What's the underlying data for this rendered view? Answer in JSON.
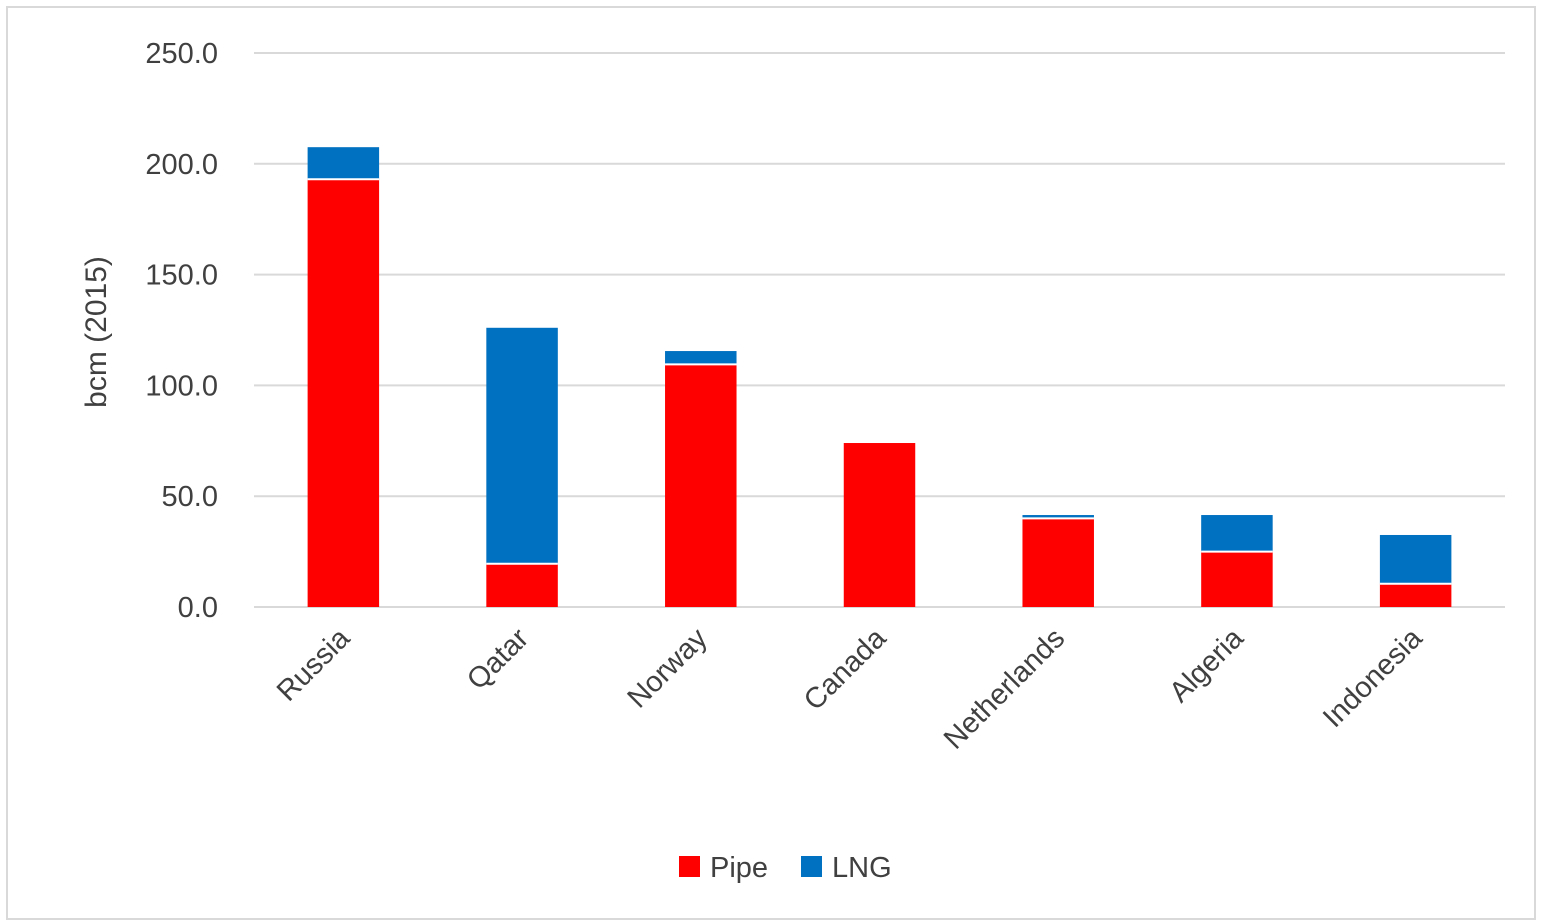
{
  "chart_data": {
    "type": "bar",
    "stacked": true,
    "categories": [
      "Russia",
      "Qatar",
      "Norway",
      "Canada",
      "Netherlands",
      "Algeria",
      "Indonesia"
    ],
    "series": [
      {
        "name": "Pipe",
        "color": "#ff0000",
        "values": [
          193.0,
          19.5,
          109.5,
          74.0,
          40.0,
          25.0,
          10.5
        ]
      },
      {
        "name": "LNG",
        "color": "#0070c0",
        "values": [
          14.5,
          106.5,
          6.0,
          0.0,
          1.5,
          16.5,
          22.0
        ]
      }
    ],
    "ylabel": "bcm (2015)",
    "xlabel": "",
    "ylim": [
      0,
      250
    ],
    "yticks": [
      "0.0",
      "50.0",
      "100.0",
      "150.0",
      "200.0",
      "250.0"
    ],
    "grid": true,
    "legend_position": "bottom"
  }
}
